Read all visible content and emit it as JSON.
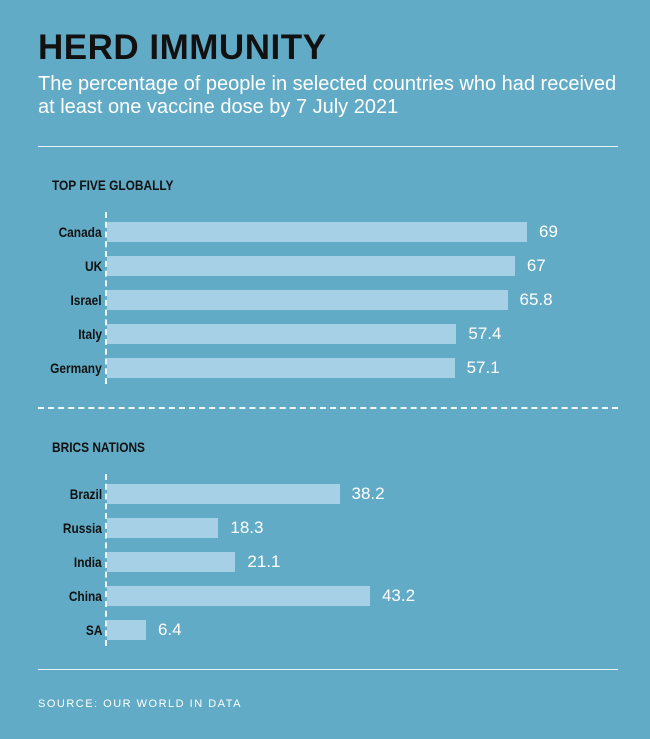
{
  "header": {
    "title": "HERD IMMUNITY",
    "subtitle": "The percentage of people in selected countries who had received at least one vaccine dose by 7 July 2021"
  },
  "source": "SOURCE: OUR WORLD IN DATA",
  "colors": {
    "background": "#62abc6",
    "bar": "#a6d0e6",
    "label_text": "#111111",
    "value_text": "#ffffff"
  },
  "chart_data": [
    {
      "type": "bar",
      "orientation": "horizontal",
      "title": "TOP FIVE GLOBALLY",
      "categories": [
        "Canada",
        "UK",
        "Israel",
        "Italy",
        "Germany"
      ],
      "values": [
        69,
        67,
        65.8,
        57.4,
        57.1
      ],
      "labels": [
        "69",
        "67",
        "65.8",
        "57.4",
        "57.1"
      ],
      "xlim": [
        0,
        100
      ]
    },
    {
      "type": "bar",
      "orientation": "horizontal",
      "title": "BRICS NATIONS",
      "categories": [
        "Brazil",
        "Russia",
        "India",
        "China",
        "SA"
      ],
      "values": [
        38.2,
        18.3,
        21.1,
        43.2,
        6.4
      ],
      "labels": [
        "38.2",
        "18.3",
        "21.1",
        "43.2",
        "6.4"
      ],
      "xlim": [
        0,
        100
      ]
    }
  ]
}
